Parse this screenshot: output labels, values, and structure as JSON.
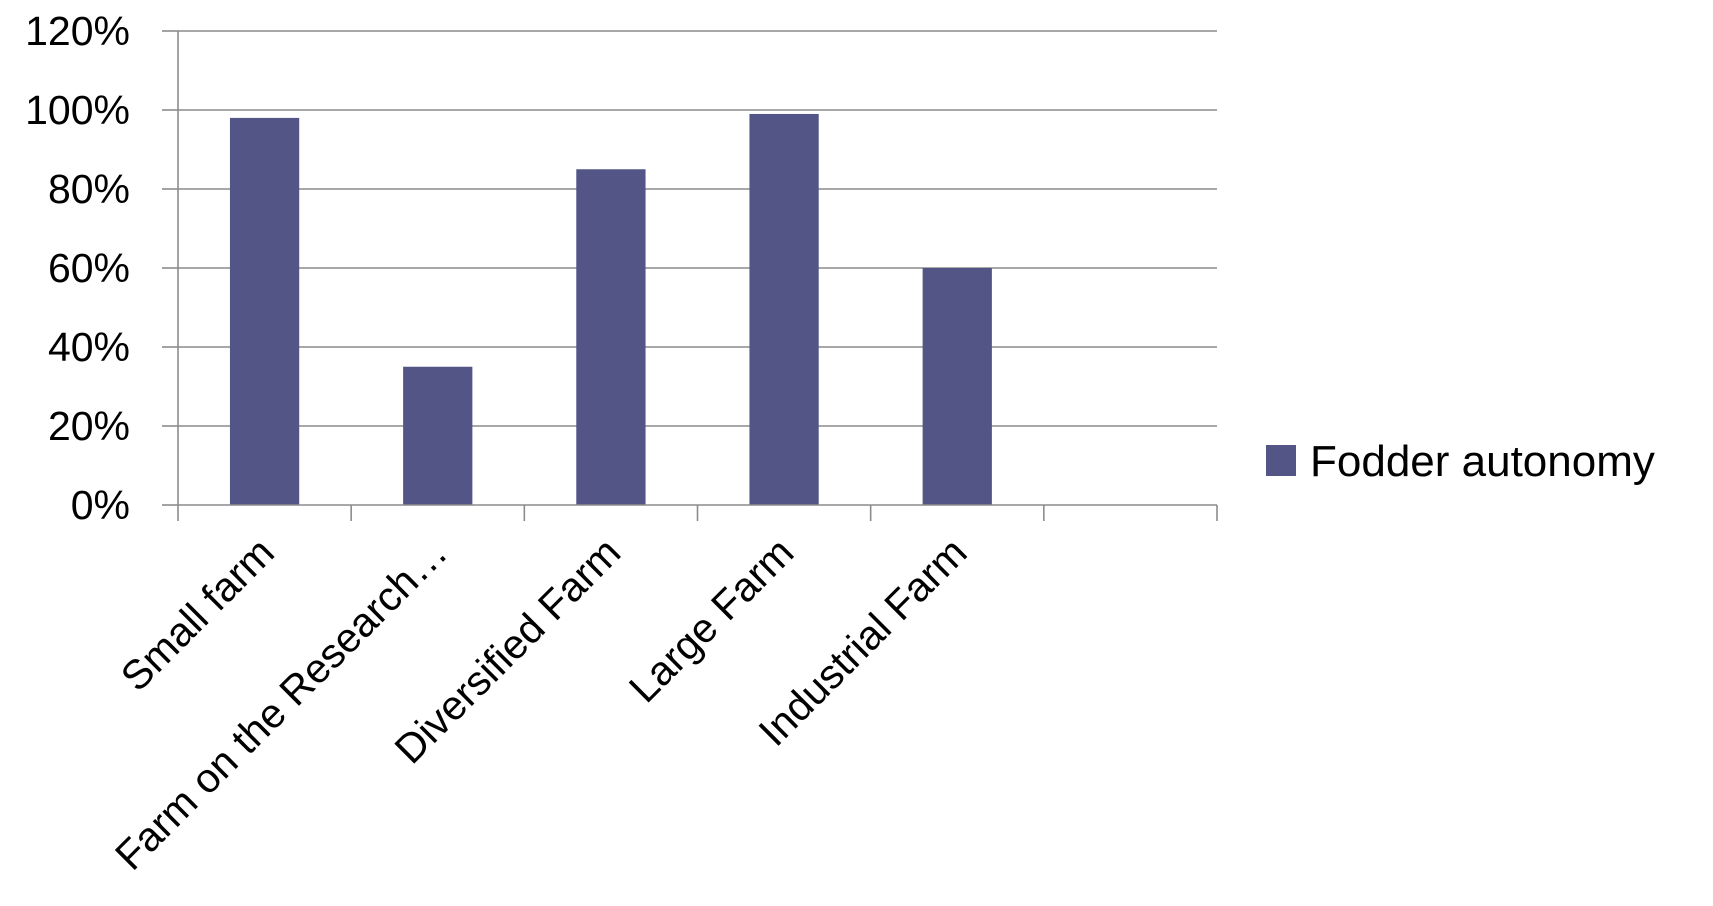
{
  "chart_data": {
    "type": "bar",
    "categories": [
      "Small farm",
      "Farm on the Research…",
      "Diversified Farm",
      "Large Farm",
      "Industrial Farm",
      ""
    ],
    "series": [
      {
        "name": "Fodder autonomy",
        "values": [
          0.98,
          0.35,
          0.85,
          0.99,
          0.6,
          null
        ],
        "color": "#545587"
      }
    ],
    "yticks": [
      "0%",
      "20%",
      "40%",
      "60%",
      "80%",
      "100%",
      "120%"
    ],
    "ylim": [
      0,
      1.2
    ],
    "grid": true,
    "legend_position": "right",
    "colors": {
      "bar": "#545587",
      "grid": "#8c8c8c",
      "axis": "#8c8c8c"
    }
  }
}
